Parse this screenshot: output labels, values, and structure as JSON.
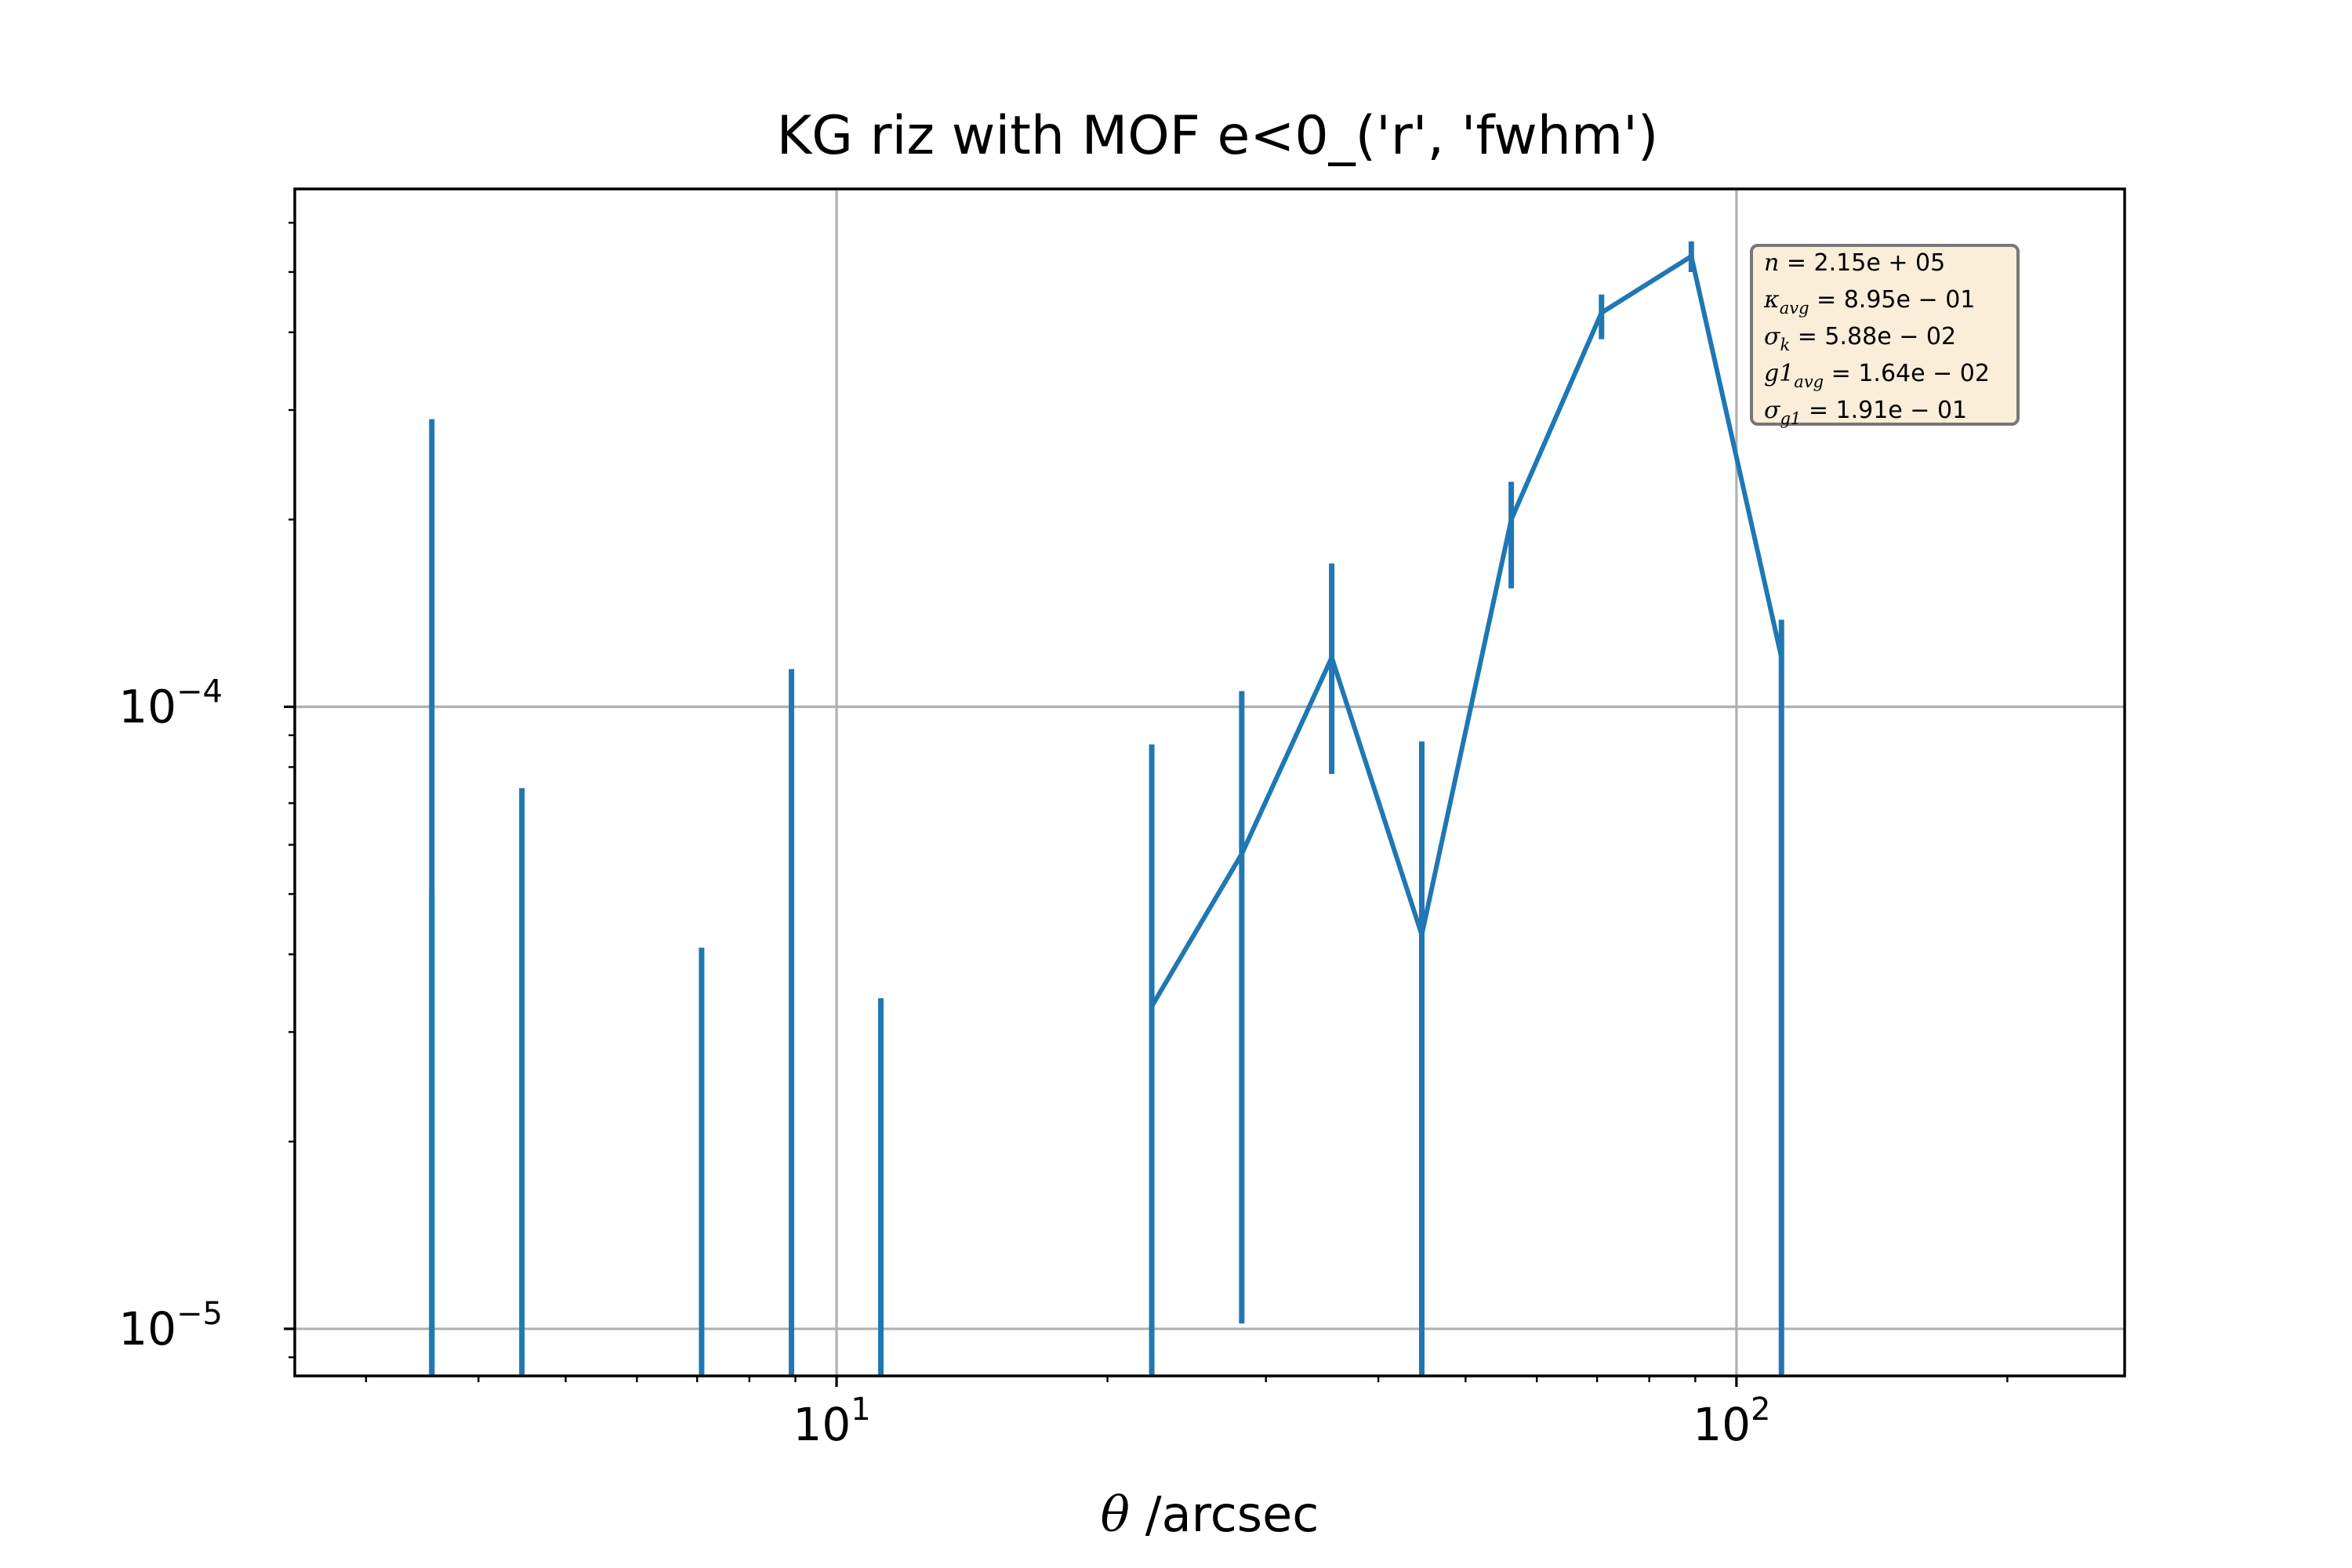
{
  "chart_data": {
    "type": "line",
    "title": "KG riz with MOF e<0_('r', 'fwhm')",
    "xlabel": "θ /arcsec",
    "xscale": "log",
    "yscale": "log",
    "xlim": [
      2.5,
      270
    ],
    "ylim": [
      8.4e-06,
      0.00068
    ],
    "grid": true,
    "x_ticks": [
      {
        "value": 10,
        "base": "10",
        "exp": "1"
      },
      {
        "value": 100,
        "base": "10",
        "exp": "2"
      }
    ],
    "y_ticks": [
      {
        "value": 1e-05,
        "base": "10",
        "exp": "−5"
      },
      {
        "value": 0.0001,
        "base": "10",
        "exp": "−4"
      }
    ],
    "series": [
      {
        "color": "#1f77b4",
        "points": [
          {
            "x": 3.55,
            "y": null,
            "yerr_low": 8.4e-06,
            "yerr_high": 0.00029
          },
          {
            "x": 3.55,
            "y": null,
            "yerr_low": 8.4e-06,
            "yerr_high": 5e-05
          },
          {
            "x": 4.47,
            "y": null,
            "yerr_low": 8.4e-06,
            "yerr_high": 7.4e-05
          },
          {
            "x": 7.08,
            "y": null,
            "yerr_low": 8.4e-06,
            "yerr_high": 4.1e-05
          },
          {
            "x": 8.91,
            "y": null,
            "yerr_low": 8.4e-06,
            "yerr_high": 0.000115
          },
          {
            "x": 11.2,
            "y": null,
            "yerr_low": 8.4e-06,
            "yerr_high": 3.4e-05
          },
          {
            "x": 22.4,
            "y": 3.3e-05,
            "yerr_low": 8.4e-06,
            "yerr_high": 8.7e-05
          },
          {
            "x": 28.2,
            "y": 5.8e-05,
            "yerr_low": 1.02e-05,
            "yerr_high": 0.000106
          },
          {
            "x": 35.5,
            "y": 0.00012,
            "yerr_low": 7.8e-05,
            "yerr_high": 0.00017
          },
          {
            "x": 44.7,
            "y": 4.3e-05,
            "yerr_low": 8.4e-06,
            "yerr_high": 8.8e-05
          },
          {
            "x": 56.2,
            "y": 0.0002,
            "yerr_low": 0.000155,
            "yerr_high": 0.00023
          },
          {
            "x": 70.8,
            "y": 0.00043,
            "yerr_low": 0.00039,
            "yerr_high": 0.00046
          },
          {
            "x": 89.1,
            "y": 0.00053,
            "yerr_low": 0.0005,
            "yerr_high": 0.00056
          },
          {
            "x": 112.2,
            "y": 0.00012,
            "yerr_low": 8.4e-06,
            "yerr_high": 0.000138
          }
        ]
      }
    ],
    "legend_box": {
      "placement": "top-right",
      "lines": [
        {
          "sym": "n",
          "sub": "",
          "value": " = 2.15e + 05"
        },
        {
          "sym": "κ",
          "sub": "avg",
          "value": " = 8.95e − 01"
        },
        {
          "sym": "σ",
          "sub": "k",
          "value": " = 5.88e − 02"
        },
        {
          "sym": "g1",
          "sub": "avg",
          "value": " = 1.64e − 02"
        },
        {
          "sym": "σ",
          "sub": "g1",
          "value": " = 1.91e − 01"
        }
      ]
    }
  }
}
